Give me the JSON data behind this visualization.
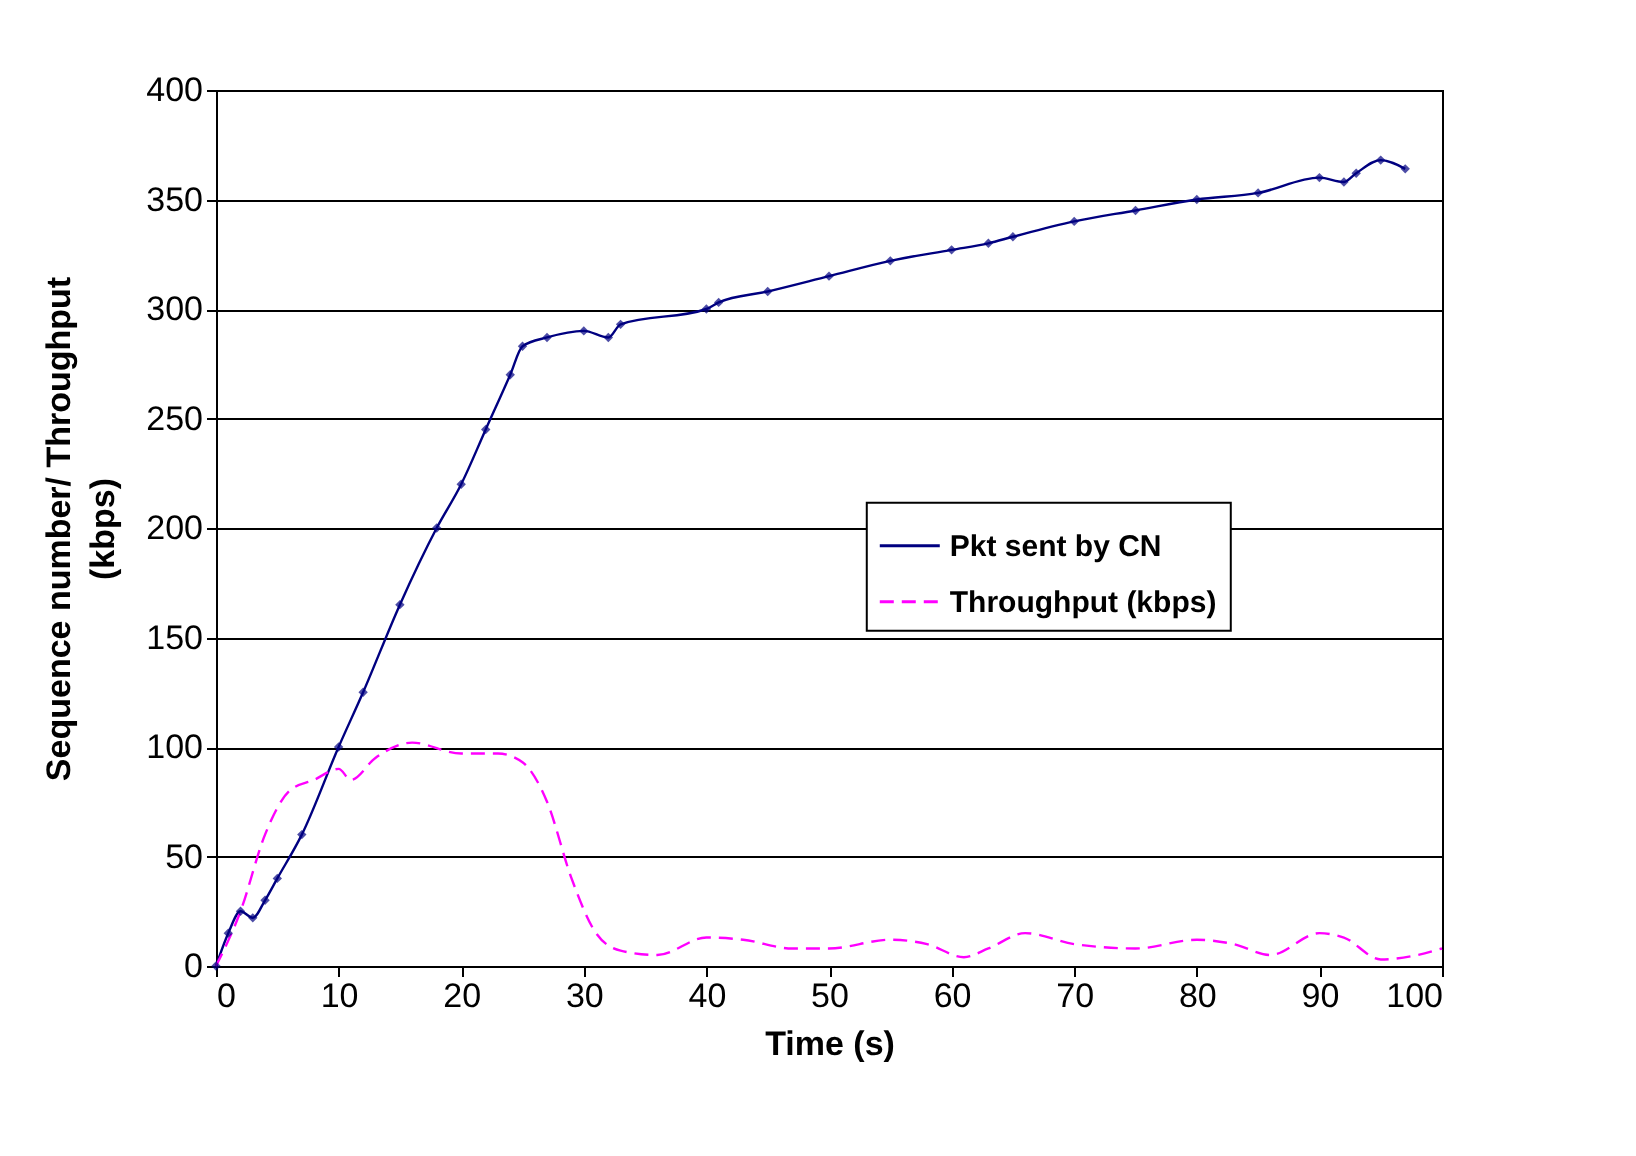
{
  "chart_data": {
    "type": "line",
    "xlabel": "Time (s)",
    "ylabel": "Sequence number/ Throughput (kbps)",
    "xlim": [
      0,
      100
    ],
    "xticks": [
      0,
      10,
      20,
      30,
      40,
      50,
      60,
      70,
      80,
      90,
      100
    ],
    "ylim": [
      0,
      400
    ],
    "yticks": [
      0,
      50,
      100,
      150,
      200,
      250,
      300,
      350,
      400
    ],
    "grid": "y",
    "legend": "right",
    "series": [
      {
        "name": "Pkt sent by CN",
        "color": "#000080",
        "marker": "diamond",
        "line_style": "solid",
        "x": [
          0,
          1,
          2,
          3,
          4,
          5,
          7,
          10,
          12,
          15,
          18,
          20,
          22,
          24,
          25,
          27,
          30,
          32,
          33,
          40,
          41,
          45,
          50,
          55,
          60,
          63,
          65,
          70,
          75,
          80,
          85,
          90,
          92,
          93,
          95,
          97
        ],
        "values": [
          0,
          15,
          25,
          22,
          30,
          40,
          60,
          100,
          125,
          165,
          200,
          220,
          245,
          270,
          283,
          287,
          290,
          287,
          293,
          300,
          303,
          308,
          315,
          322,
          327,
          330,
          333,
          340,
          345,
          350,
          353,
          360,
          358,
          362,
          368,
          364
        ]
      },
      {
        "name": "Throughput (kbps)",
        "color": "#ff00ff",
        "marker": "none",
        "line_style": "dashed",
        "x": [
          0,
          2,
          4,
          6,
          8,
          10,
          11,
          13,
          16,
          20,
          23,
          25,
          27,
          29,
          31,
          33,
          36,
          40,
          43,
          47,
          50,
          55,
          58,
          61,
          63,
          66,
          70,
          75,
          80,
          83,
          86,
          90,
          92,
          95,
          98,
          100
        ],
        "values": [
          0,
          25,
          60,
          80,
          85,
          90,
          85,
          95,
          102,
          97,
          97,
          93,
          75,
          40,
          15,
          7,
          5,
          13,
          12,
          8,
          8,
          12,
          10,
          4,
          8,
          15,
          10,
          8,
          12,
          10,
          5,
          15,
          13,
          3,
          5,
          8
        ]
      }
    ]
  }
}
